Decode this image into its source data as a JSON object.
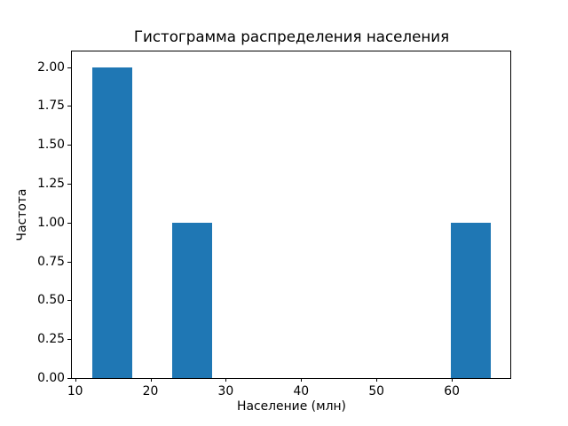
{
  "chart_data": {
    "type": "bar",
    "subtype": "histogram",
    "title": "Гистограмма распределения населения",
    "xlabel": "Население (млн)",
    "ylabel": "Частота",
    "bar_color": "#1f77b4",
    "background_color": "#ffffff",
    "bin_edges": [
      12.1,
      17.4,
      22.7,
      28.0,
      33.3,
      38.6,
      43.9,
      49.2,
      54.5,
      59.8,
      65.1
    ],
    "counts": [
      2,
      0,
      1,
      0,
      0,
      0,
      0,
      0,
      0,
      1
    ],
    "xlim": [
      9.45,
      67.77
    ],
    "ylim": [
      0,
      2.1
    ],
    "grid": false,
    "legend": null,
    "x_ticks": [
      {
        "value": 10,
        "label": "10"
      },
      {
        "value": 20,
        "label": "20"
      },
      {
        "value": 30,
        "label": "30"
      },
      {
        "value": 40,
        "label": "40"
      },
      {
        "value": 50,
        "label": "50"
      },
      {
        "value": 60,
        "label": "60"
      }
    ],
    "y_ticks": [
      {
        "value": 0.0,
        "label": "0.00"
      },
      {
        "value": 0.25,
        "label": "0.25"
      },
      {
        "value": 0.5,
        "label": "0.50"
      },
      {
        "value": 0.75,
        "label": "0.75"
      },
      {
        "value": 1.0,
        "label": "1.00"
      },
      {
        "value": 1.25,
        "label": "1.25"
      },
      {
        "value": 1.5,
        "label": "1.50"
      },
      {
        "value": 1.75,
        "label": "1.75"
      },
      {
        "value": 2.0,
        "label": "2.00"
      }
    ]
  }
}
